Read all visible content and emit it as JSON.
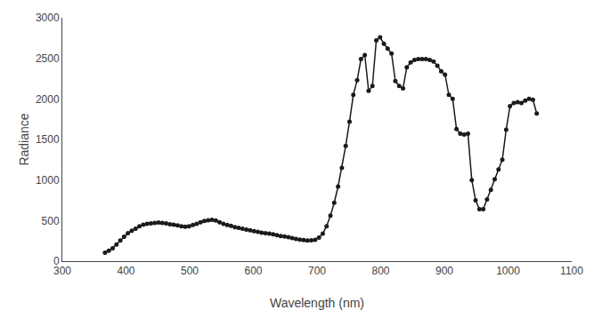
{
  "chart_data": {
    "type": "line",
    "x": [
      367,
      373,
      379,
      385,
      391,
      397,
      403,
      409,
      415,
      421,
      427,
      433,
      439,
      445,
      451,
      457,
      463,
      469,
      475,
      481,
      487,
      493,
      499,
      505,
      511,
      517,
      523,
      529,
      535,
      541,
      547,
      553,
      559,
      565,
      571,
      577,
      583,
      589,
      595,
      601,
      607,
      613,
      619,
      625,
      631,
      637,
      643,
      649,
      655,
      661,
      667,
      673,
      679,
      685,
      691,
      697,
      703,
      709,
      715,
      721,
      727,
      733,
      739,
      745,
      751,
      757,
      763,
      769,
      775,
      781,
      787,
      793,
      799,
      805,
      811,
      817,
      823,
      829,
      835,
      841,
      847,
      853,
      859,
      865,
      871,
      877,
      883,
      889,
      895,
      901,
      907,
      913,
      919,
      925,
      931,
      937,
      943,
      949,
      955,
      961,
      967,
      973,
      979,
      985,
      991,
      997,
      1003,
      1009,
      1015,
      1021,
      1027,
      1033,
      1039,
      1045
    ],
    "values": [
      105,
      130,
      160,
      205,
      255,
      300,
      345,
      375,
      400,
      430,
      450,
      460,
      465,
      470,
      475,
      470,
      465,
      455,
      450,
      440,
      430,
      425,
      430,
      445,
      460,
      480,
      495,
      505,
      510,
      500,
      480,
      460,
      445,
      435,
      420,
      410,
      400,
      390,
      380,
      370,
      360,
      350,
      345,
      340,
      330,
      320,
      310,
      305,
      295,
      285,
      275,
      265,
      260,
      255,
      258,
      262,
      290,
      340,
      430,
      560,
      720,
      920,
      1150,
      1420,
      1720,
      2050,
      2230,
      2490,
      2540,
      2100,
      2160,
      2720,
      2760,
      2680,
      2620,
      2560,
      2220,
      2160,
      2130,
      2390,
      2450,
      2480,
      2490,
      2490,
      2490,
      2480,
      2460,
      2410,
      2340,
      2300,
      2050,
      2000,
      1630,
      1570,
      1560,
      1570,
      1000,
      750,
      640,
      640,
      760,
      880,
      1010,
      1130,
      1250,
      1620,
      1910,
      1950,
      1960,
      1950,
      1980,
      2000,
      1990,
      1820
    ],
    "xlabel": "Wavelength (nm)",
    "ylabel": "Radiance",
    "xlim": [
      300,
      1100
    ],
    "ylim": [
      0,
      3000
    ],
    "xticks": [
      300,
      400,
      500,
      600,
      700,
      800,
      900,
      1000,
      1100
    ],
    "yticks": [
      0,
      500,
      1000,
      1500,
      2000,
      2500,
      3000
    ],
    "color": "#1a1a1a",
    "marker": "circle",
    "grid": false
  }
}
